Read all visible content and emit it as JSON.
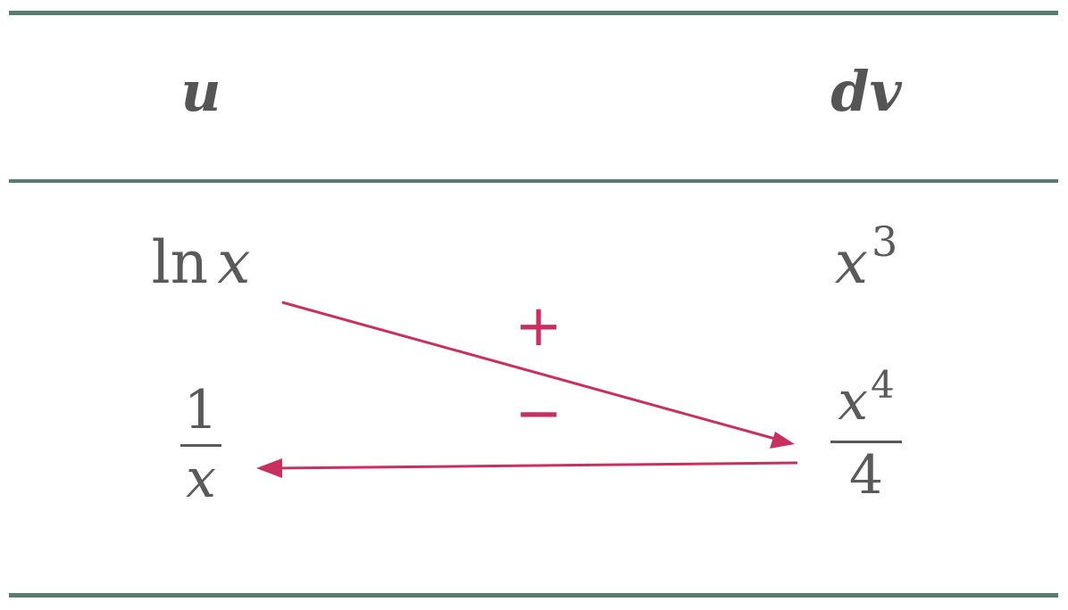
{
  "header": {
    "u_label": "u",
    "dv_label": "dv"
  },
  "rows": [
    {
      "u": {
        "fn": "ln",
        "var": "x"
      },
      "dv": {
        "base": "x",
        "exp": "3"
      }
    },
    {
      "u": {
        "numerator": "1",
        "denominator": "x"
      },
      "dv": {
        "numerator_base": "x",
        "numerator_exp": "4",
        "denominator": "4"
      }
    }
  ],
  "signs": {
    "plus": "+",
    "minus": "−"
  },
  "colors": {
    "rule": "#577d72",
    "text": "#5a5a5a",
    "arrow": "#c8305f"
  },
  "arrows": [
    {
      "name": "diagonal-arrow",
      "from": "ln x",
      "to": "x^4/4"
    },
    {
      "name": "return-arrow",
      "from": "x^4/4",
      "to": "1/x"
    }
  ]
}
